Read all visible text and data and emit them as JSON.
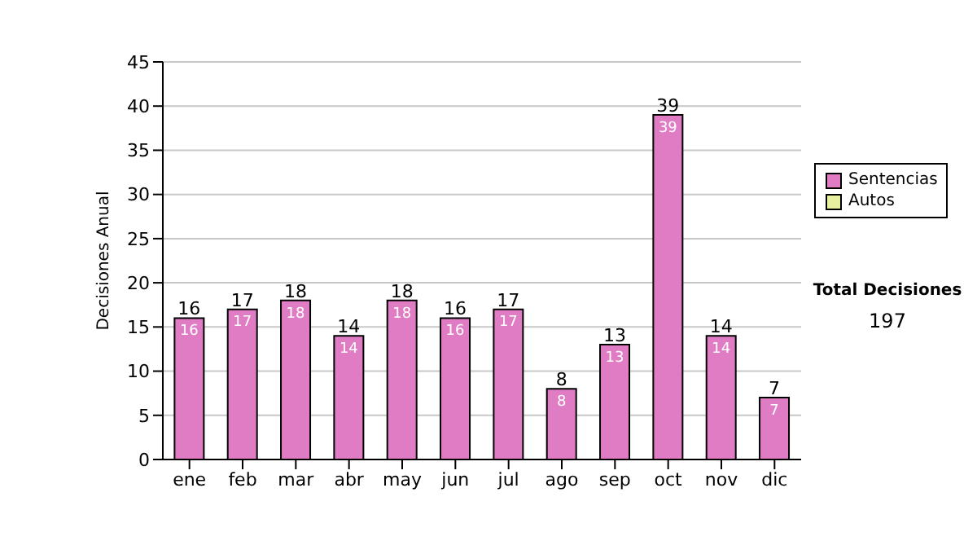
{
  "chart_data": {
    "type": "bar",
    "ylabel": "Decisiones Anual",
    "categories": [
      "ene",
      "feb",
      "mar",
      "abr",
      "may",
      "jun",
      "jul",
      "ago",
      "sep",
      "oct",
      "nov",
      "dic"
    ],
    "series": [
      {
        "name": "Sentencias",
        "color": "#e07cc4",
        "values": [
          16,
          17,
          18,
          14,
          18,
          16,
          17,
          8,
          13,
          39,
          14,
          7
        ],
        "value_labels": [
          "16",
          "17",
          "18",
          "14",
          "18",
          "16",
          "17",
          "8",
          "13",
          "39",
          "14",
          "7"
        ]
      },
      {
        "name": "Autos",
        "color": "#e8f0a0",
        "values": [
          0,
          0,
          0,
          0,
          0,
          0,
          0,
          0,
          0,
          0,
          0,
          0
        ]
      }
    ],
    "stacked": true,
    "totals": [
      "16",
      "17",
      "18",
      "14",
      "18",
      "16",
      "17",
      "8",
      "13",
      "39",
      "14",
      "7"
    ],
    "ylim": [
      0,
      45
    ],
    "yticks": [
      0,
      5,
      10,
      15,
      20,
      25,
      30,
      35,
      40,
      45
    ],
    "grid": "y",
    "legend": "right",
    "annotations": [
      "Total Decisiones",
      "197"
    ]
  }
}
